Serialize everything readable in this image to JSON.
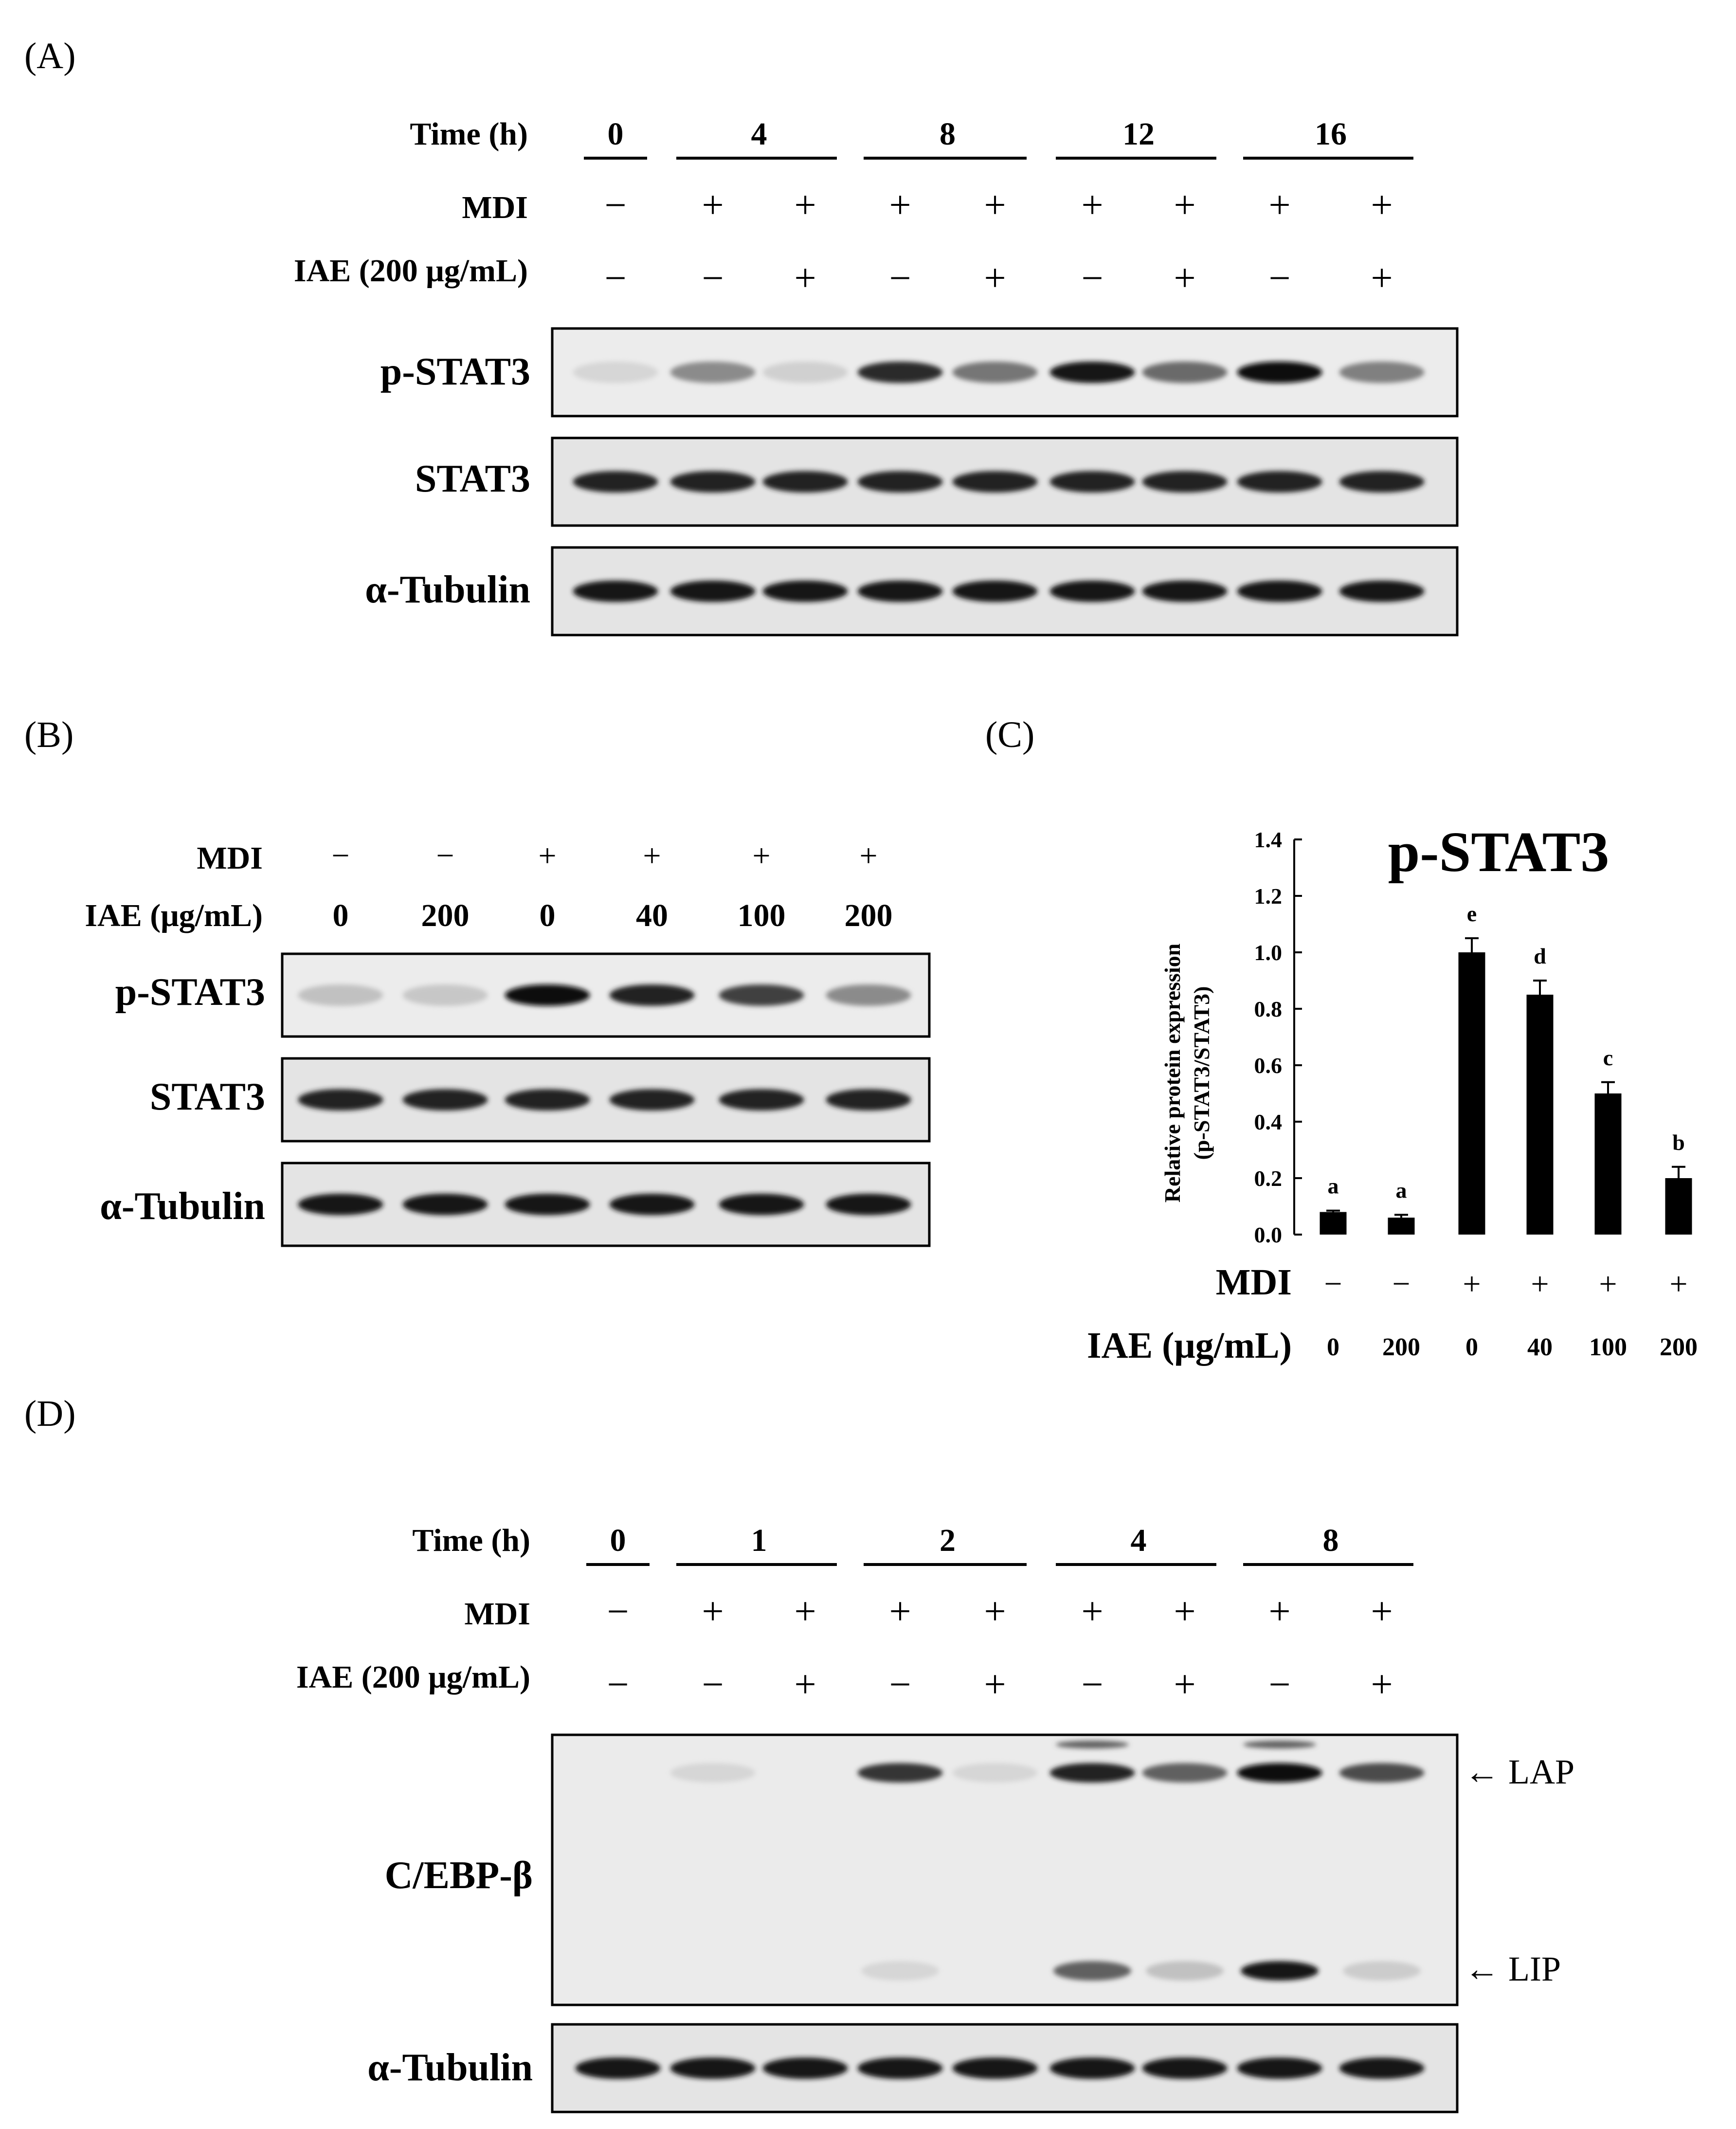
{
  "panel_labels": {
    "A": "(A)",
    "B": "(B)",
    "C": "(C)",
    "D": "(D)"
  },
  "panel_a": {
    "row_labels": {
      "time": "Time (h)",
      "mdi": "MDI",
      "iae": "IAE (200 μg/mL)"
    },
    "time_groups": [
      "0",
      "4",
      "8",
      "12",
      "16"
    ],
    "mdi": [
      "−",
      "+",
      "+",
      "+",
      "+",
      "+",
      "+",
      "+",
      "+"
    ],
    "iae": [
      "−",
      "−",
      "+",
      "−",
      "+",
      "−",
      "+",
      "−",
      "+"
    ],
    "blots": [
      {
        "label": "p-STAT3",
        "band_intensity": [
          0.05,
          0.4,
          0.08,
          0.85,
          0.5,
          0.95,
          0.55,
          1.0,
          0.45
        ]
      },
      {
        "label": "STAT3",
        "band_intensity": [
          0.9,
          0.9,
          0.9,
          0.9,
          0.9,
          0.9,
          0.9,
          0.9,
          0.9
        ]
      },
      {
        "label": "α-Tubulin",
        "band_intensity": [
          0.95,
          0.95,
          0.95,
          0.95,
          0.95,
          0.95,
          0.95,
          0.95,
          0.95
        ]
      }
    ]
  },
  "panel_b": {
    "row_labels": {
      "mdi": "MDI",
      "iae": "IAE (μg/mL)"
    },
    "mdi": [
      "−",
      "−",
      "+",
      "+",
      "+",
      "+"
    ],
    "iae": [
      "0",
      "200",
      "0",
      "40",
      "100",
      "200"
    ],
    "blots": [
      {
        "label": "p-STAT3",
        "band_intensity": [
          0.15,
          0.12,
          1.0,
          0.9,
          0.75,
          0.4
        ]
      },
      {
        "label": "STAT3",
        "band_intensity": [
          0.9,
          0.9,
          0.9,
          0.9,
          0.9,
          0.9
        ]
      },
      {
        "label": "α-Tubulin",
        "band_intensity": [
          0.95,
          0.95,
          0.95,
          0.95,
          0.95,
          0.95
        ]
      }
    ]
  },
  "chart_data": {
    "type": "bar",
    "title": "p-STAT3",
    "ylabel_line1": "Relative protein expression",
    "ylabel_line2": "(p-STAT3/STAT3)",
    "xlabel": "",
    "ylim": [
      0,
      1.4
    ],
    "yticks": [
      "0.0",
      "0.2",
      "0.4",
      "0.6",
      "0.8",
      "1.0",
      "1.2",
      "1.4"
    ],
    "values": [
      0.08,
      0.06,
      1.0,
      0.85,
      0.5,
      0.2
    ],
    "errors": [
      0.005,
      0.01,
      0.05,
      0.05,
      0.04,
      0.04
    ],
    "significance": [
      "a",
      "a",
      "e",
      "d",
      "c",
      "b"
    ],
    "mdi_label": "MDI",
    "iae_label": "IAE (μg/mL)",
    "mdi": [
      "−",
      "−",
      "+",
      "+",
      "+",
      "+"
    ],
    "iae": [
      "0",
      "200",
      "0",
      "40",
      "100",
      "200"
    ],
    "bar_color": "#000000"
  },
  "panel_d": {
    "row_labels": {
      "time": "Time (h)",
      "mdi": "MDI",
      "iae": "IAE (200 μg/mL)"
    },
    "time_groups": [
      "0",
      "1",
      "2",
      "4",
      "8"
    ],
    "mdi": [
      "−",
      "+",
      "+",
      "+",
      "+",
      "+",
      "+",
      "+",
      "+"
    ],
    "iae": [
      "−",
      "−",
      "+",
      "−",
      "+",
      "−",
      "+",
      "−",
      "+"
    ],
    "cebp": {
      "label": "C/EBP-β",
      "lap_label": "← LAP",
      "lip_label": "← LIP",
      "lap_intensity": [
        0.0,
        0.05,
        0.0,
        0.8,
        0.05,
        0.9,
        0.6,
        1.0,
        0.7
      ],
      "lip_intensity": [
        0.0,
        0.0,
        0.0,
        0.05,
        0.0,
        0.6,
        0.15,
        0.95,
        0.1
      ]
    },
    "tubulin": {
      "label": "α-Tubulin",
      "band_intensity": [
        0.95,
        0.95,
        0.95,
        0.95,
        0.95,
        0.95,
        0.95,
        0.95,
        0.95
      ]
    }
  }
}
